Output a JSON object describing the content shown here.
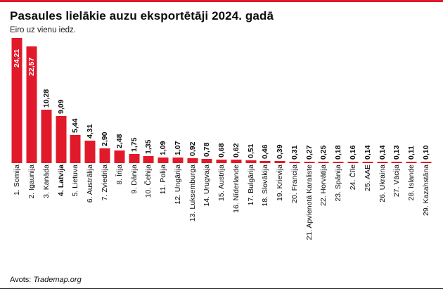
{
  "header": {
    "title": "Pasaules lielākie auzu eksportētāji 2024. gadā",
    "subtitle": "Eiro uz vienu iedz."
  },
  "footer": {
    "source_prefix": "Avots:",
    "source_name": "Trademap.org"
  },
  "colors": {
    "accent_red": "#e11a2b",
    "text_black": "#0d0d0d",
    "value_inside_white": "#ffffff"
  },
  "chart_data": {
    "type": "bar",
    "orientation": "vertical",
    "title": "Pasaules lielākie auzu eksportētāji 2024. gadā",
    "subtitle": "Eiro uz vienu iedz.",
    "source": "Avots: Trademap.org",
    "xlabel": "",
    "ylabel": "Eiro uz vienu iedz.",
    "ylim": [
      0,
      25
    ],
    "grid": false,
    "legend": false,
    "axis_visible": false,
    "bar_color": "#e11a2b",
    "value_label_inside_threshold": 20,
    "highlight_category_index": 3,
    "categories": [
      "1. Somija",
      "2. Igaunija",
      "3. Kanāda",
      "4. Latvija",
      "5. Lietuva",
      "6. Austrālija",
      "7. Zviedrija",
      "8. Īrija",
      "9. Dānija",
      "10. Čehija",
      "11. Polija",
      "12. Ungārija",
      "13. Luksemburga",
      "14. Urugvaja",
      "15. Austrija",
      "16. Nīderlande",
      "17. Bulgārija",
      "18. Slovākija",
      "19. Krievija",
      "20. Francija",
      "21. Apvienotā Karaliste",
      "22. Horvātija",
      "23. Spānija",
      "24. Čīle",
      "25. AAE",
      "26. Ukraina",
      "27. Vācija",
      "28. Islande",
      "29. Kazahstāna"
    ],
    "values": [
      24.21,
      22.57,
      10.28,
      9.09,
      5.44,
      4.31,
      2.9,
      2.48,
      1.75,
      1.35,
      1.09,
      1.07,
      0.92,
      0.78,
      0.68,
      0.62,
      0.51,
      0.46,
      0.39,
      0.31,
      0.27,
      0.25,
      0.18,
      0.16,
      0.14,
      0.14,
      0.13,
      0.11,
      0.1
    ],
    "value_labels": [
      "24,21",
      "22,57",
      "10,28",
      "9,09",
      "5,44",
      "4,31",
      "2,90",
      "2,48",
      "1,75",
      "1,35",
      "1,09",
      "1,07",
      "0,92",
      "0,78",
      "0,68",
      "0,62",
      "0,51",
      "0,46",
      "0,39",
      "0,31",
      "0,27",
      "0,25",
      "0,18",
      "0,16",
      "0,14",
      "0,14",
      "0,13",
      "0,11",
      "0,10"
    ]
  }
}
